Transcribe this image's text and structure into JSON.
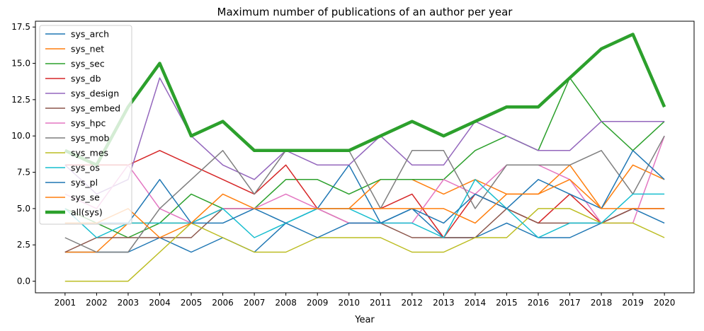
{
  "chart_data": {
    "type": "line",
    "title": "Maximum number of publications of an author per year",
    "xlabel": "Year",
    "ylabel": "",
    "x": [
      "2001",
      "2002",
      "2003",
      "2004",
      "2005",
      "2006",
      "2007",
      "2008",
      "2009",
      "2010",
      "2011",
      "2012",
      "2013",
      "2014",
      "2015",
      "2016",
      "2017",
      "2018",
      "2019",
      "2020"
    ],
    "ylim": [
      -0.8,
      17.9
    ],
    "yticks": [
      0.0,
      2.5,
      5.0,
      7.5,
      10.0,
      12.5,
      15.0,
      17.5
    ],
    "ytick_labels": [
      "0.0",
      "2.5",
      "5.0",
      "7.5",
      "10.0",
      "12.5",
      "15.0",
      "17.5"
    ],
    "grid": false,
    "legend_position": "upper left",
    "series": [
      {
        "name": "sys_arch",
        "color": "#1f77b4",
        "width": 1.5,
        "values": [
          2,
          2,
          2,
          3,
          2,
          3,
          2,
          4,
          5,
          8,
          4,
          5,
          3,
          3,
          4,
          3,
          3,
          4,
          5,
          4
        ]
      },
      {
        "name": "sys_net",
        "color": "#ff7f0e",
        "width": 1.5,
        "values": [
          2,
          2,
          4,
          4,
          4,
          5,
          5,
          5,
          5,
          5,
          7,
          7,
          6,
          7,
          6,
          6,
          8,
          5,
          8,
          7
        ]
      },
      {
        "name": "sys_sec",
        "color": "#2ca02c",
        "width": 1.5,
        "values": [
          5,
          4,
          3,
          4,
          6,
          5,
          5,
          7,
          7,
          6,
          7,
          7,
          7,
          9,
          10,
          9,
          14,
          11,
          9,
          11
        ]
      },
      {
        "name": "sys_db",
        "color": "#d62728",
        "width": 1.5,
        "values": [
          8,
          8,
          8,
          9,
          8,
          7,
          6,
          8,
          5,
          5,
          5,
          6,
          3,
          6,
          5,
          4,
          6,
          4,
          5,
          5
        ]
      },
      {
        "name": "sys_design",
        "color": "#9467bd",
        "width": 1.5,
        "values": [
          8,
          6,
          7,
          14,
          10,
          8,
          7,
          9,
          8,
          8,
          10,
          8,
          8,
          11,
          10,
          9,
          9,
          11,
          11,
          11
        ]
      },
      {
        "name": "sys_embed",
        "color": "#8c564b",
        "width": 1.5,
        "values": [
          2,
          3,
          3,
          3,
          3,
          5,
          5,
          5,
          5,
          4,
          4,
          3,
          3,
          3,
          5,
          4,
          4,
          4,
          5,
          5
        ]
      },
      {
        "name": "sys_hpc",
        "color": "#e377c2",
        "width": 1.5,
        "values": [
          6,
          5,
          8,
          5,
          4,
          5,
          5,
          6,
          5,
          4,
          4,
          4,
          7,
          6,
          8,
          8,
          7,
          4,
          4,
          10
        ]
      },
      {
        "name": "sys_mob",
        "color": "#7f7f7f",
        "width": 1.5,
        "values": [
          3,
          2,
          2,
          5,
          7,
          9,
          6,
          9,
          9,
          9,
          5,
          9,
          9,
          5,
          8,
          8,
          8,
          9,
          6,
          10
        ]
      },
      {
        "name": "sys_mes",
        "color": "#bcbd22",
        "width": 1.5,
        "values": [
          0,
          0,
          0,
          2,
          4,
          3,
          2,
          2,
          3,
          3,
          3,
          2,
          2,
          3,
          3,
          5,
          5,
          4,
          4,
          3
        ]
      },
      {
        "name": "sys_os",
        "color": "#17becf",
        "width": 1.5,
        "values": [
          5,
          3,
          4,
          4,
          4,
          5,
          3,
          4,
          5,
          5,
          4,
          4,
          3,
          7,
          5,
          3,
          4,
          4,
          6,
          6
        ]
      },
      {
        "name": "sys_pl",
        "color": "#1f77b4",
        "width": 1.5,
        "values": [
          4,
          4,
          4,
          7,
          4,
          4,
          5,
          4,
          3,
          4,
          4,
          5,
          4,
          6,
          5,
          7,
          6,
          5,
          9,
          7
        ]
      },
      {
        "name": "sys_se",
        "color": "#ff7f0e",
        "width": 1.5,
        "values": [
          4,
          4,
          5,
          3,
          4,
          6,
          5,
          5,
          5,
          5,
          5,
          5,
          5,
          4,
          6,
          6,
          7,
          5,
          5,
          5
        ]
      },
      {
        "name": "all(sys)",
        "color": "#2ca02c",
        "width": 4.5,
        "values": [
          9,
          8,
          12,
          15,
          10,
          11,
          9,
          9,
          9,
          9,
          10,
          11,
          10,
          11,
          12,
          12,
          14,
          16,
          17,
          12
        ]
      }
    ]
  }
}
